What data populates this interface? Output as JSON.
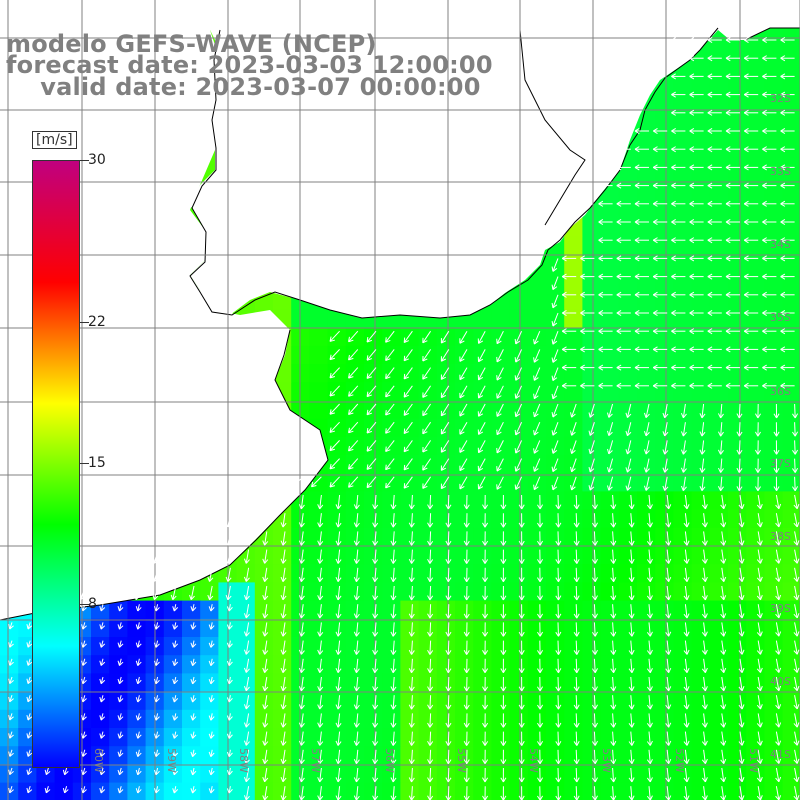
{
  "title": {
    "line1": "modelo GEFS-WAVE (NCEP)",
    "line2": "forecast date: 2023-03-03 12:00:00",
    "line3": "    valid date: 2023-03-07 00:00:00"
  },
  "colorbar": {
    "unit": "[m/s]",
    "ticks": [
      "30",
      "22",
      "15",
      "8"
    ],
    "tick_values": [
      30,
      22,
      15,
      8
    ],
    "min": 0,
    "max": 30,
    "colors": [
      "#0000ff",
      "#00ffff",
      "#00ff00",
      "#ffff00",
      "#ff0000",
      "#c0007f"
    ]
  },
  "map": {
    "lat_labels": [
      "32S",
      "33S",
      "34S",
      "35S",
      "36S",
      "37S",
      "38S",
      "39S",
      "40S",
      "41S"
    ],
    "lon_labels": [
      "60W",
      "59W",
      "58W",
      "57W",
      "56W",
      "55W",
      "54W",
      "53W",
      "52W",
      "51W"
    ],
    "land_color": "#ffffff",
    "grid_color": "#808080",
    "arrow_color": "#ffffff"
  }
}
